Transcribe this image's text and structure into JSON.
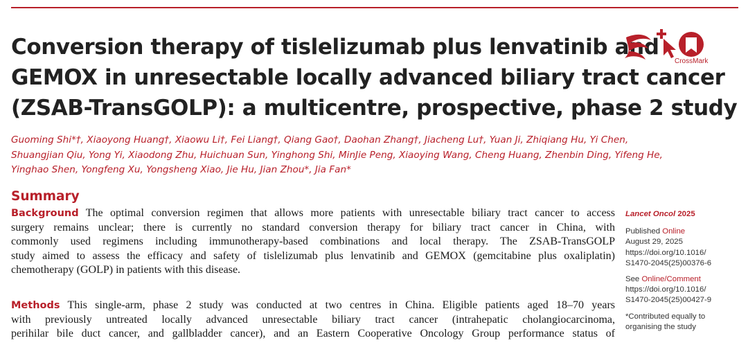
{
  "title_lines": [
    "Conversion therapy of tislelizumab plus lenvatinib and",
    "GEMOX in unresectable locally advanced biliary tract cancer",
    "(ZSAB-TransGOLP): a multicentre, prospective, phase 2 study"
  ],
  "crossmark_label": "CrossMark",
  "author_lines": [
    "Guoming Shi*†, Xiaoyong Huang†, Xiaowu Li†, Fei Liang†, Qiang Gao†, Daohan Zhang†, Jiacheng Lu†, Yuan Ji, Zhiqiang Hu, Yi Chen,",
    "Shuangjian Qiu, Yong Yi, Xiaodong Zhu, Huichuan Sun, Yinghong Shi, MinJie Peng, Xiaoying Wang, Cheng Huang, Zhenbin Ding, Yifeng He,",
    "Yinghao Shen, Yongfeng Xu, Yongsheng Xiao, Jie Hu, Jian Zhou*, Jia Fan*"
  ],
  "summary_heading": "Summary",
  "background": {
    "keyword": "Background",
    "lines": [
      " The optimal conversion regimen that allows more patients with unresectable biliary tract cancer to access",
      "surgery remains unclear; there is currently no standard conversion therapy for biliary tract cancer in China, with",
      "commonly used regimens including immunotherapy-based combinations and local therapy. The ZSAB-TransGOLP",
      "study aimed to assess the efficacy and safety of tislelizumab plus lenvatinib and GEMOX (gemcitabine plus oxaliplatin)",
      "chemotherapy (GOLP) in patients with this disease."
    ]
  },
  "methods": {
    "keyword": "Methods",
    "lines": [
      " This single-arm, phase 2 study was conducted at two centres in China. Eligible patients aged 18–70 years",
      "with previously untreated locally advanced unresectable biliary tract cancer (intrahepatic cholangiocarcinoma,",
      "perihilar bile duct cancer, and gallbladder cancer), and an Eastern Cooperative Oncology Group performance status of"
    ]
  },
  "sidebar": {
    "journal": "Lancet Oncol",
    "year": " 2025",
    "published_prefix": "Published ",
    "published_online": "Online",
    "published_date": "August 29, 2025",
    "doi_1a": "https://doi.org/10.1016/",
    "doi_1b": "S1470-2045(25)00376-6",
    "see_prefix": "See ",
    "see_link": "Online/Comment",
    "doi_2a": "https://doi.org/10.1016/",
    "doi_2b": "S1470-2045(25)00427-9",
    "note_1": "*Contributed equally to",
    "note_2": "organising the study"
  },
  "colors": {
    "accent": "#b8202a",
    "text": "#1a1a1a"
  }
}
